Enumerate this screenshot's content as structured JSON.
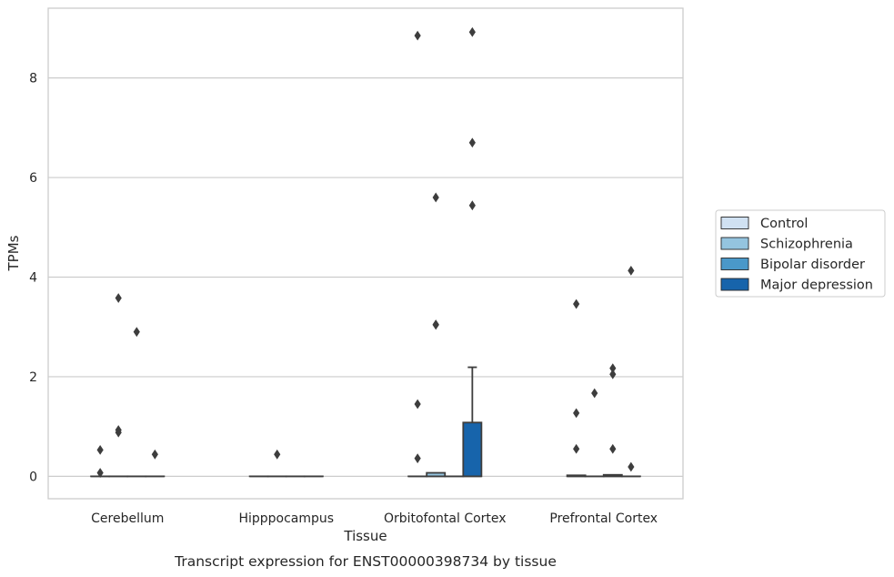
{
  "chart_data": {
    "type": "box",
    "title": "",
    "caption": "Transcript expression for ENST00000398734 by tissue",
    "xlabel": "Tissue",
    "ylabel": "TPMs",
    "categories": [
      "Cerebellum",
      "Hipppocampus",
      "Orbitofontal Cortex",
      "Prefrontal Cortex"
    ],
    "ylim": [
      -0.45,
      9.4
    ],
    "yticks": [
      0,
      2,
      4,
      6,
      8
    ],
    "grid": "horizontal",
    "legend_position": "right",
    "series": [
      {
        "name": "Control",
        "color": "#d0e1f2",
        "boxes": [
          {
            "q1": 0,
            "median": 0,
            "q3": 0,
            "whisker_low": 0,
            "whisker_high": 0,
            "outliers": [
              0.53,
              0.07
            ]
          },
          {
            "q1": 0,
            "median": 0,
            "q3": 0,
            "whisker_low": 0,
            "whisker_high": 0,
            "outliers": []
          },
          {
            "q1": 0,
            "median": 0,
            "q3": 0,
            "whisker_low": 0,
            "whisker_high": 0,
            "outliers": [
              8.85,
              1.45,
              0.36
            ]
          },
          {
            "q1": 0,
            "median": 0,
            "q3": 0.02,
            "whisker_low": 0,
            "whisker_high": 0.02,
            "outliers": [
              3.46,
              1.27,
              0.55
            ]
          }
        ]
      },
      {
        "name": "Schizophrenia",
        "color": "#94c4df",
        "boxes": [
          {
            "q1": 0,
            "median": 0,
            "q3": 0,
            "whisker_low": 0,
            "whisker_high": 0,
            "outliers": [
              3.58,
              0.93,
              0.88
            ]
          },
          {
            "q1": 0,
            "median": 0,
            "q3": 0,
            "whisker_low": 0,
            "whisker_high": 0,
            "outliers": [
              0.44
            ]
          },
          {
            "q1": 0,
            "median": 0,
            "q3": 0.07,
            "whisker_low": 0,
            "whisker_high": 0.07,
            "outliers": [
              5.6,
              3.05,
              3.04
            ]
          },
          {
            "q1": 0,
            "median": 0,
            "q3": 0,
            "whisker_low": 0,
            "whisker_high": 0,
            "outliers": [
              1.67
            ]
          }
        ]
      },
      {
        "name": "Bipolar disorder",
        "color": "#4a98c9",
        "boxes": [
          {
            "q1": 0,
            "median": 0,
            "q3": 0,
            "whisker_low": 0,
            "whisker_high": 0,
            "outliers": [
              2.9
            ]
          },
          {
            "q1": 0,
            "median": 0,
            "q3": 0,
            "whisker_low": 0,
            "whisker_high": 0,
            "outliers": []
          },
          {
            "q1": 0,
            "median": 0,
            "q3": 0,
            "whisker_low": 0,
            "whisker_high": 0,
            "outliers": []
          },
          {
            "q1": 0,
            "median": 0,
            "q3": 0.03,
            "whisker_low": 0,
            "whisker_high": 0.03,
            "outliers": [
              2.17,
              2.05,
              0.55
            ]
          }
        ]
      },
      {
        "name": "Major depression",
        "color": "#1764ab",
        "boxes": [
          {
            "q1": 0,
            "median": 0,
            "q3": 0,
            "whisker_low": 0,
            "whisker_high": 0,
            "outliers": [
              0.44
            ]
          },
          {
            "q1": 0,
            "median": 0,
            "q3": 0,
            "whisker_low": 0,
            "whisker_high": 0,
            "outliers": []
          },
          {
            "q1": 0,
            "median": 0,
            "q3": 1.08,
            "whisker_low": 0,
            "whisker_high": 2.19,
            "outliers": [
              8.92,
              6.7,
              5.44
            ]
          },
          {
            "q1": 0,
            "median": 0,
            "q3": 0,
            "whisker_low": 0,
            "whisker_high": 0,
            "outliers": [
              4.13,
              0.19
            ]
          }
        ]
      }
    ]
  }
}
